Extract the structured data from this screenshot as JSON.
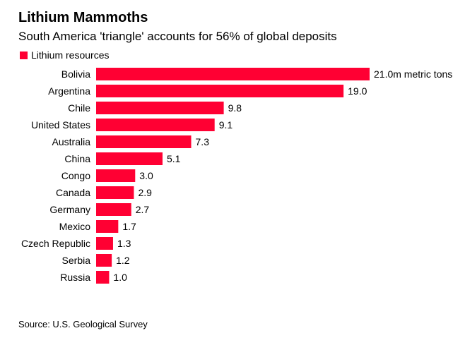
{
  "chart_data": {
    "type": "bar",
    "orientation": "horizontal",
    "title": "Lithium Mammoths",
    "subtitle": "South America 'triangle' accounts for 56% of global deposits",
    "legend": [
      {
        "name": "Lithium resources",
        "color": "#ff0033"
      }
    ],
    "categories": [
      "Bolivia",
      "Argentina",
      "Chile",
      "United States",
      "Australia",
      "China",
      "Congo",
      "Canada",
      "Germany",
      "Mexico",
      "Czech Republic",
      "Serbia",
      "Russia"
    ],
    "values": [
      21.0,
      19.0,
      9.8,
      9.1,
      7.3,
      5.1,
      3.0,
      2.9,
      2.7,
      1.7,
      1.3,
      1.2,
      1.0
    ],
    "value_labels": [
      "21.0m metric tons",
      "19.0",
      "9.8",
      "9.1",
      "7.3",
      "5.1",
      "3.0",
      "2.9",
      "2.7",
      "1.7",
      "1.3",
      "1.2",
      "1.0"
    ],
    "unit": "million metric tons",
    "xlim": [
      0,
      21
    ],
    "grid": false,
    "source": "Source: U.S. Geological Survey"
  }
}
